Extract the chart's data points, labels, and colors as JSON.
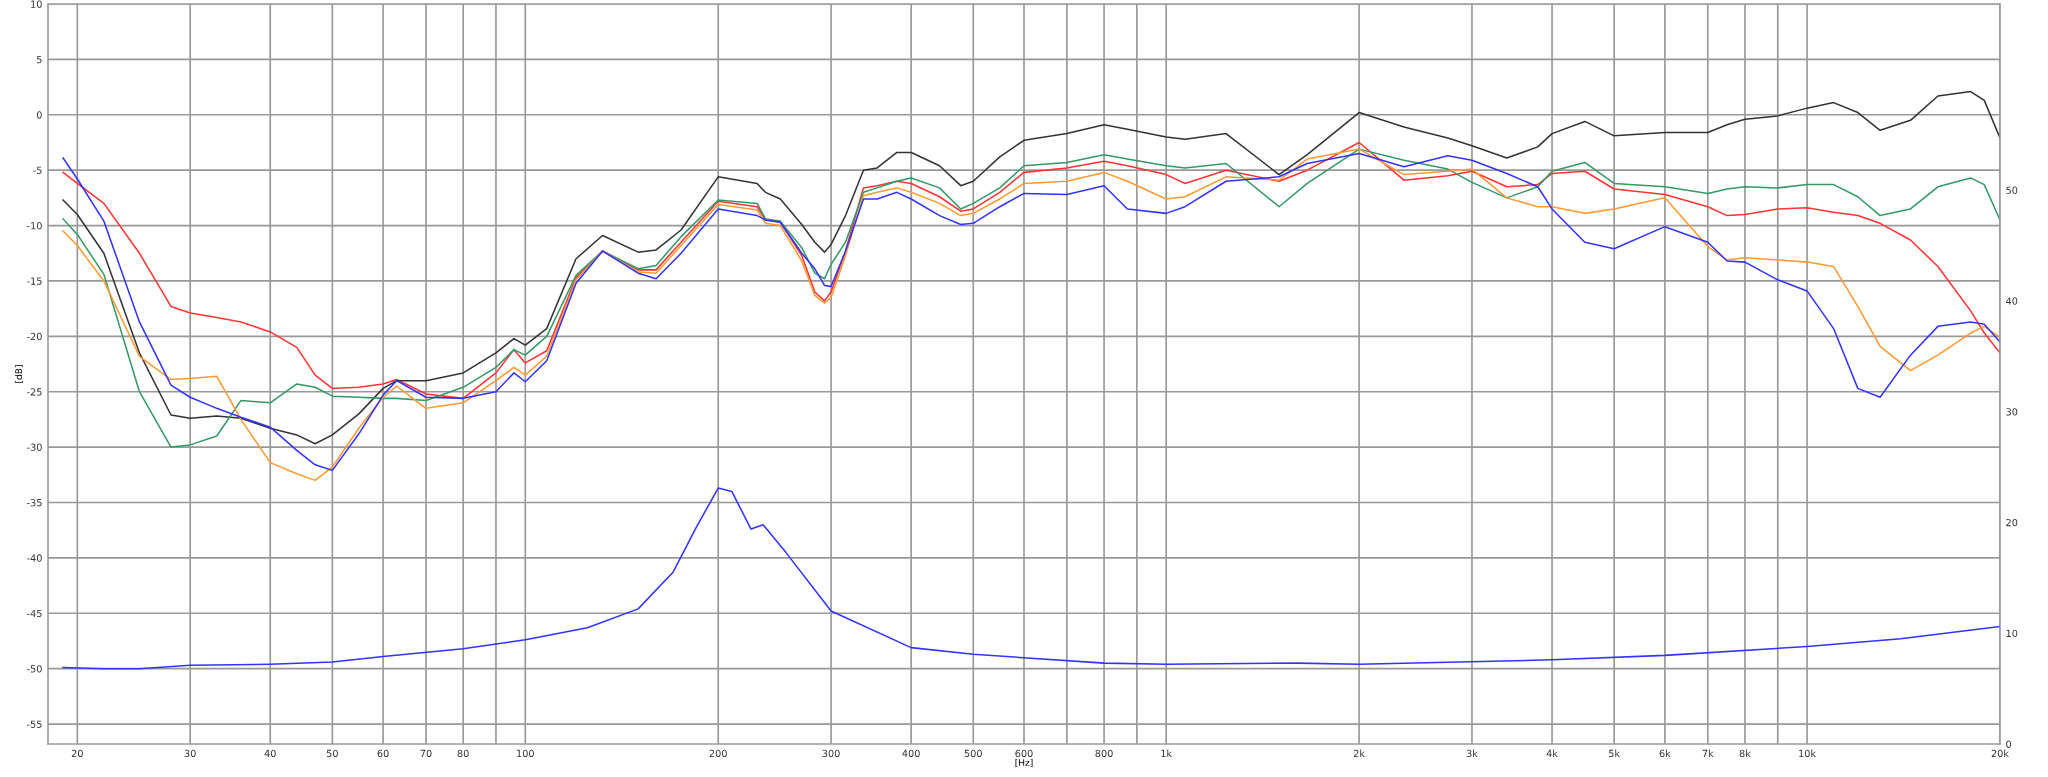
{
  "chart_data": {
    "type": "line",
    "xlabel": "[Hz]",
    "ylabel": "[dB]",
    "log": "x",
    "grid": true,
    "marker": "none",
    "line_style": "solid",
    "x": [
      19,
      20,
      22,
      25,
      28,
      30,
      33,
      36,
      40,
      44,
      47,
      50,
      55,
      60,
      63,
      70,
      80,
      90,
      96,
      100,
      108,
      120,
      132,
      150,
      160,
      175,
      200,
      230,
      237,
      250,
      270,
      283,
      293,
      300,
      316,
      337,
      354,
      380,
      400,
      443,
      478,
      500,
      550,
      600,
      700,
      800,
      870,
      1000,
      1070,
      1240,
      1500,
      1660,
      2000,
      2350,
      2750,
      3000,
      3400,
      3800,
      4000,
      4500,
      5000,
      6000,
      7000,
      7500,
      8000,
      9000,
      10000,
      11000,
      12000,
      13000,
      14500,
      16000,
      18000,
      18900,
      20000
    ],
    "xlim": [
      18,
      20000
    ],
    "xticks": [
      {
        "value": 20,
        "label": "20"
      },
      {
        "value": 30,
        "label": "30"
      },
      {
        "value": 40,
        "label": "40"
      },
      {
        "value": 50,
        "label": "50"
      },
      {
        "value": 60,
        "label": "60"
      },
      {
        "value": 70,
        "label": "70"
      },
      {
        "value": 80,
        "label": "80"
      },
      {
        "value": 90,
        "label": null
      },
      {
        "value": 100,
        "label": "100"
      },
      {
        "value": 200,
        "label": "200"
      },
      {
        "value": 300,
        "label": "300"
      },
      {
        "value": 400,
        "label": "400"
      },
      {
        "value": 500,
        "label": "500"
      },
      {
        "value": 600,
        "label": "600"
      },
      {
        "value": 700,
        "label": null
      },
      {
        "value": 800,
        "label": "800"
      },
      {
        "value": 900,
        "label": null
      },
      {
        "value": 1000,
        "label": "1k"
      },
      {
        "value": 2000,
        "label": "2k"
      },
      {
        "value": 3000,
        "label": "3k"
      },
      {
        "value": 4000,
        "label": "4k"
      },
      {
        "value": 5000,
        "label": "5k"
      },
      {
        "value": 6000,
        "label": "6k"
      },
      {
        "value": 7000,
        "label": "7k"
      },
      {
        "value": 8000,
        "label": "8k"
      },
      {
        "value": 9000,
        "label": null
      },
      {
        "value": 10000,
        "label": "10k"
      },
      {
        "value": 20000,
        "label": "20k"
      }
    ],
    "ylim": [
      -56.8,
      10
    ],
    "yticks": [
      -55,
      -50,
      -45,
      -40,
      -35,
      -30,
      -25,
      -20,
      -15,
      -10,
      -5,
      0,
      5,
      10
    ],
    "y2lim": [
      0,
      66.8
    ],
    "y2ticks": [
      0,
      10,
      20,
      30,
      40,
      50
    ],
    "series": [
      {
        "color": "#ff3333",
        "values": [
          -5.2,
          -6.2,
          -8.0,
          -12.5,
          -17.3,
          -17.9,
          -18.3,
          -18.7,
          -19.6,
          -21.0,
          -23.5,
          -24.7,
          -24.6,
          -24.3,
          -23.9,
          -25.2,
          -25.6,
          -23.3,
          -21.2,
          -22.4,
          -21.3,
          -14.7,
          -12.3,
          -14.0,
          -14.0,
          -11.5,
          -7.8,
          -8.3,
          -9.5,
          -9.7,
          -12.7,
          -16.0,
          -16.8,
          -16.0,
          -12.3,
          -6.6,
          -6.4,
          -6.0,
          -6.2,
          -7.4,
          -8.7,
          -8.5,
          -7.0,
          -5.2,
          -4.8,
          -4.2,
          -4.6,
          -5.4,
          -6.2,
          -5.0,
          -6.0,
          -5.0,
          -2.5,
          -5.9,
          -5.5,
          -5.1,
          -6.5,
          -6.3,
          -5.3,
          -5.1,
          -6.7,
          -7.2,
          -8.3,
          -9.1,
          -9.0,
          -8.5,
          -8.4,
          -8.8,
          -9.1,
          -9.8,
          -11.3,
          -13.7,
          -17.7,
          -19.7,
          -21.5
        ]
      },
      {
        "color": "#333333",
        "values": [
          -7.7,
          -9.0,
          -12.5,
          -21.5,
          -27.1,
          -27.4,
          -27.2,
          -27.4,
          -28.3,
          -28.9,
          -29.7,
          -28.9,
          -27.0,
          -24.7,
          -24.0,
          -24.0,
          -23.3,
          -21.5,
          -20.2,
          -20.8,
          -19.3,
          -13.0,
          -10.9,
          -12.4,
          -12.2,
          -10.4,
          -5.6,
          -6.2,
          -7.0,
          -7.6,
          -9.9,
          -11.5,
          -12.4,
          -11.7,
          -9.1,
          -5.0,
          -4.8,
          -3.4,
          -3.4,
          -4.6,
          -6.4,
          -6.0,
          -3.8,
          -2.3,
          -1.7,
          -0.9,
          -1.3,
          -2.0,
          -2.2,
          -1.7,
          -5.4,
          -3.6,
          0.2,
          -1.1,
          -2.1,
          -2.8,
          -3.9,
          -2.9,
          -1.7,
          -0.6,
          -1.9,
          -1.6,
          -1.6,
          -0.9,
          -0.4,
          -0.1,
          0.6,
          1.1,
          0.2,
          -1.4,
          -0.5,
          1.7,
          2.1,
          1.3,
          -2.1
        ]
      },
      {
        "color": "#339966",
        "values": [
          -9.4,
          -10.8,
          -14.4,
          -25.0,
          -30.0,
          -29.8,
          -29.0,
          -25.8,
          -26.0,
          -24.3,
          -24.6,
          -25.4,
          -25.5,
          -25.6,
          -25.6,
          -25.8,
          -24.6,
          -22.8,
          -21.2,
          -21.7,
          -20.0,
          -14.5,
          -12.3,
          -13.9,
          -13.6,
          -11.0,
          -7.7,
          -8.0,
          -9.4,
          -9.6,
          -12.0,
          -14.3,
          -14.8,
          -13.5,
          -11.5,
          -7.0,
          -6.6,
          -6.0,
          -5.7,
          -6.6,
          -8.5,
          -8.0,
          -6.6,
          -4.6,
          -4.3,
          -3.6,
          -4.0,
          -4.6,
          -4.8,
          -4.4,
          -8.3,
          -6.2,
          -3.1,
          -4.1,
          -4.9,
          -6.1,
          -7.5,
          -6.5,
          -5.1,
          -4.3,
          -6.2,
          -6.5,
          -7.1,
          -6.7,
          -6.5,
          -6.6,
          -6.3,
          -6.3,
          -7.4,
          -9.1,
          -8.5,
          -6.5,
          -5.7,
          -6.3,
          -9.5
        ]
      },
      {
        "color": "#ff9933",
        "values": [
          -10.5,
          -11.8,
          -15.0,
          -21.8,
          -23.9,
          -23.8,
          -23.6,
          -27.5,
          -31.4,
          -32.4,
          -33.0,
          -31.8,
          -28.3,
          -25.5,
          -24.5,
          -26.5,
          -26.0,
          -24.0,
          -22.8,
          -23.5,
          -21.8,
          -14.9,
          -12.3,
          -14.2,
          -14.3,
          -11.8,
          -8.1,
          -8.6,
          -9.8,
          -10.0,
          -13.2,
          -16.3,
          -17.0,
          -16.5,
          -12.7,
          -7.3,
          -7.0,
          -6.6,
          -7.0,
          -8.0,
          -9.1,
          -8.9,
          -7.6,
          -6.2,
          -6.0,
          -5.2,
          -6.0,
          -7.6,
          -7.4,
          -5.6,
          -5.9,
          -4.0,
          -3.1,
          -5.4,
          -5.1,
          -4.9,
          -7.5,
          -8.3,
          -8.3,
          -8.9,
          -8.5,
          -7.5,
          -11.9,
          -13.1,
          -12.9,
          -13.1,
          -13.3,
          -13.7,
          -17.3,
          -20.9,
          -23.1,
          -21.7,
          -19.7,
          -19.1,
          -20.1
        ]
      },
      {
        "color": "#3333ff",
        "values": [
          -3.9,
          -5.8,
          -9.6,
          -18.7,
          -24.4,
          -25.5,
          -26.5,
          -27.3,
          -28.2,
          -30.3,
          -31.6,
          -32.1,
          -28.8,
          -25.3,
          -24.0,
          -25.5,
          -25.6,
          -25.0,
          -23.3,
          -24.1,
          -22.2,
          -15.2,
          -12.3,
          -14.3,
          -14.8,
          -12.5,
          -8.5,
          -9.1,
          -9.5,
          -9.7,
          -12.5,
          -13.9,
          -15.4,
          -15.5,
          -12.3,
          -7.6,
          -7.6,
          -7.0,
          -7.6,
          -9.1,
          -9.9,
          -9.8,
          -8.3,
          -7.1,
          -7.2,
          -6.4,
          -8.5,
          -8.9,
          -8.3,
          -6.0,
          -5.6,
          -4.4,
          -3.5,
          -4.7,
          -3.7,
          -4.1,
          -5.3,
          -6.5,
          -8.5,
          -11.5,
          -12.1,
          -10.1,
          -11.5,
          -13.2,
          -13.3,
          -14.9,
          -15.9,
          -19.3,
          -24.7,
          -25.5,
          -21.7,
          -19.1,
          -18.7,
          -18.9,
          -20.5
        ]
      },
      {
        "color": "#3333ff",
        "axis": "y2",
        "x": [
          19,
          22,
          25,
          30,
          40,
          50,
          60,
          80,
          100,
          125,
          150,
          170,
          185,
          200,
          210,
          225,
          235,
          255,
          300,
          400,
          500,
          800,
          1000,
          1600,
          2000,
          4000,
          6000,
          10000,
          14000,
          20000
        ],
        "values": [
          6.9,
          6.8,
          6.8,
          7.1,
          7.2,
          7.4,
          7.9,
          8.6,
          9.4,
          10.5,
          12.2,
          15.5,
          19.6,
          23.1,
          22.8,
          19.4,
          19.8,
          17.3,
          12.0,
          8.7,
          8.1,
          7.3,
          7.2,
          7.3,
          7.2,
          7.6,
          8.0,
          8.8,
          9.5,
          10.6
        ]
      }
    ]
  }
}
